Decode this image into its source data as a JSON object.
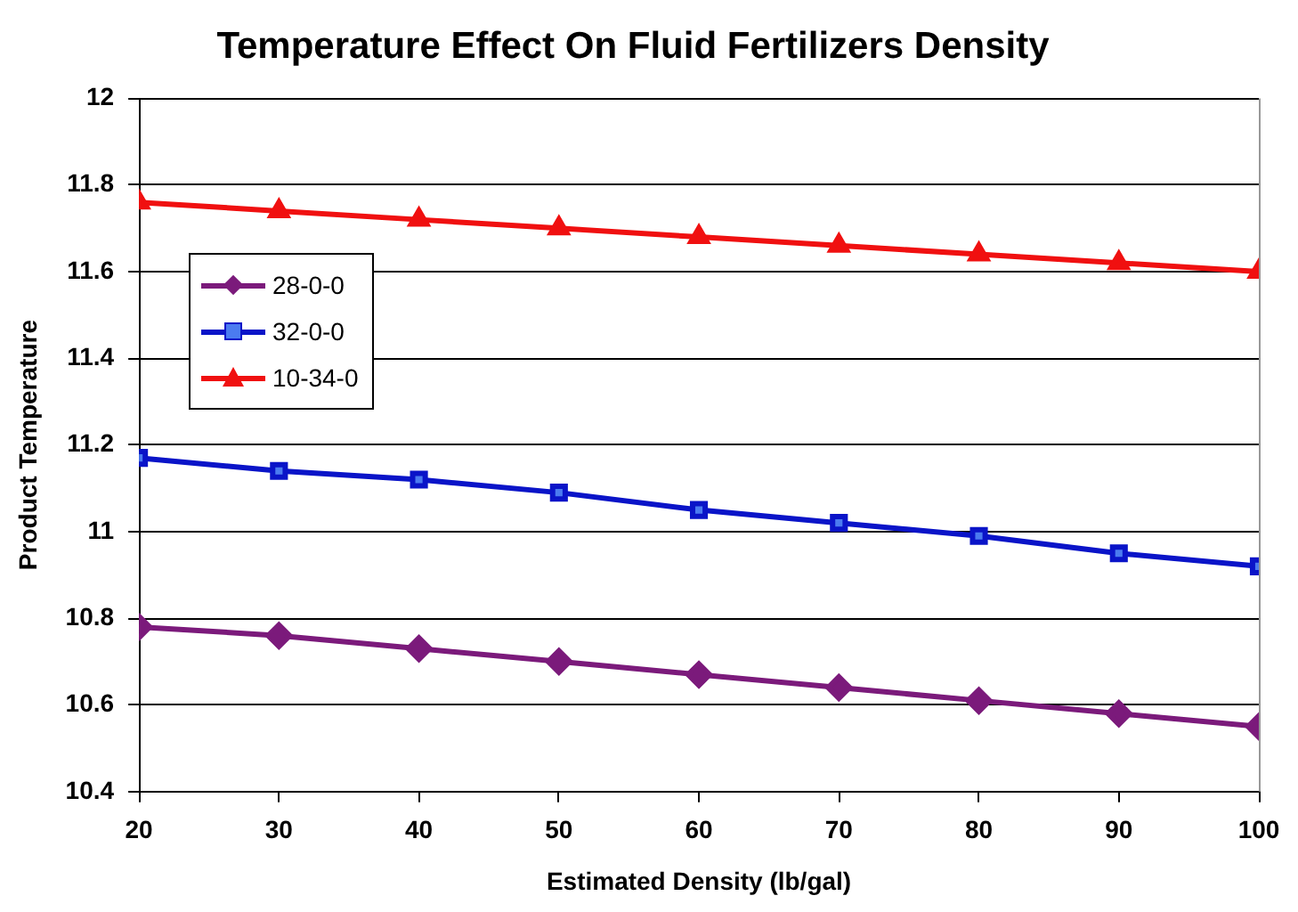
{
  "chart_data": {
    "type": "line",
    "title": "Temperature Effect On Fluid Fertilizers Density",
    "xlabel": "Estimated Density (lb/gal)",
    "ylabel": "Product Temperature",
    "x": [
      20,
      30,
      40,
      50,
      60,
      70,
      80,
      90,
      100
    ],
    "series": [
      {
        "name": "28-0-0",
        "color": "#7b1a7b",
        "marker": "diamond",
        "values": [
          10.78,
          10.76,
          10.73,
          10.7,
          10.67,
          10.64,
          10.61,
          10.58,
          10.55
        ]
      },
      {
        "name": "32-0-0",
        "color": "#0a14c8",
        "marker": "square",
        "values": [
          11.17,
          11.14,
          11.12,
          11.09,
          11.05,
          11.02,
          10.99,
          10.95,
          10.92
        ]
      },
      {
        "name": "10-34-0",
        "color": "#f01010",
        "marker": "triangle",
        "values": [
          11.76,
          11.74,
          11.72,
          11.7,
          11.68,
          11.66,
          11.64,
          11.62,
          11.6
        ]
      }
    ],
    "xlim": [
      20,
      100
    ],
    "xticks": [
      20,
      30,
      40,
      50,
      60,
      70,
      80,
      90,
      100
    ],
    "ylim": [
      10.4,
      12
    ],
    "yticks": [
      10.4,
      10.6,
      10.8,
      11,
      11.2,
      11.4,
      11.6,
      11.8,
      12
    ],
    "grid": "y",
    "legend": "left",
    "line_style": "solid"
  }
}
